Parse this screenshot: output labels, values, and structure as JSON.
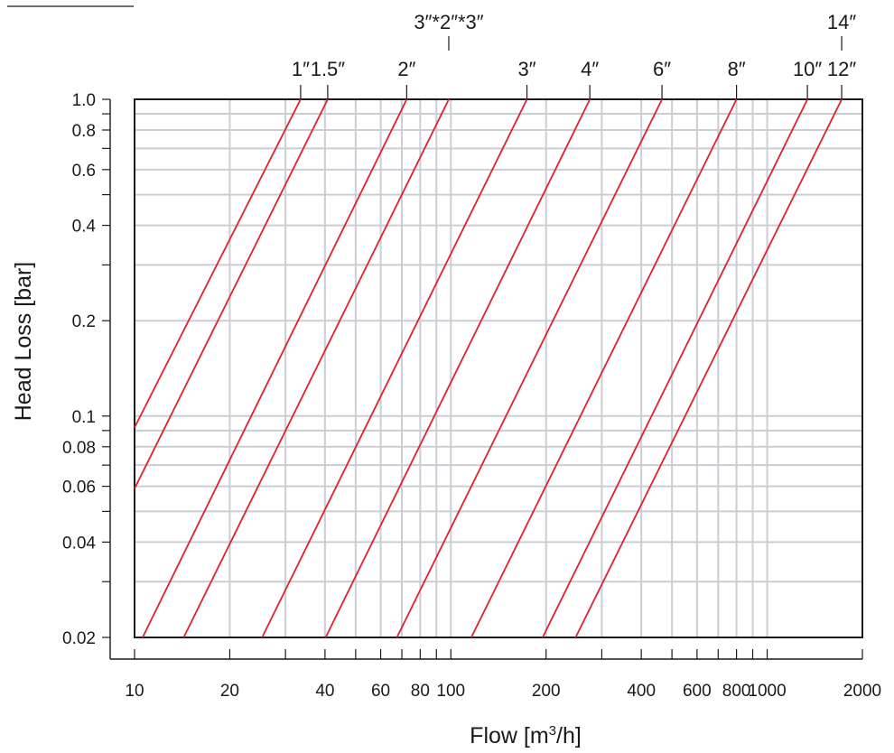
{
  "chart_data": {
    "type": "line",
    "xlabel_parts": {
      "pre": "Flow [m",
      "sup": "3",
      "post": "/h]"
    },
    "ylabel": "Head Loss [bar]",
    "x_scale": "log",
    "y_scale": "log",
    "xlim": [
      10,
      2000
    ],
    "ylim": [
      0.02,
      1.0
    ],
    "grid": true,
    "x_ticks": [
      {
        "value": 10,
        "label": "10"
      },
      {
        "value": 20,
        "label": "20"
      },
      {
        "value": 30,
        "label": ""
      },
      {
        "value": 40,
        "label": "40"
      },
      {
        "value": 50,
        "label": ""
      },
      {
        "value": 60,
        "label": "60"
      },
      {
        "value": 70,
        "label": ""
      },
      {
        "value": 80,
        "label": "80"
      },
      {
        "value": 90,
        "label": ""
      },
      {
        "value": 100,
        "label": "100"
      },
      {
        "value": 200,
        "label": "200"
      },
      {
        "value": 300,
        "label": ""
      },
      {
        "value": 400,
        "label": "400"
      },
      {
        "value": 500,
        "label": ""
      },
      {
        "value": 600,
        "label": "600"
      },
      {
        "value": 700,
        "label": ""
      },
      {
        "value": 800,
        "label": "800"
      },
      {
        "value": 900,
        "label": ""
      },
      {
        "value": 1000,
        "label": "1000"
      },
      {
        "value": 2000,
        "label": "2000"
      }
    ],
    "y_ticks": [
      {
        "value": 0.02,
        "label": "0.02"
      },
      {
        "value": 0.03,
        "label": ""
      },
      {
        "value": 0.04,
        "label": "0.04"
      },
      {
        "value": 0.05,
        "label": ""
      },
      {
        "value": 0.06,
        "label": "0.06"
      },
      {
        "value": 0.07,
        "label": ""
      },
      {
        "value": 0.08,
        "label": "0.08"
      },
      {
        "value": 0.09,
        "label": ""
      },
      {
        "value": 0.1,
        "label": "0.1"
      },
      {
        "value": 0.2,
        "label": "0.2"
      },
      {
        "value": 0.3,
        "label": ""
      },
      {
        "value": 0.4,
        "label": "0.4"
      },
      {
        "value": 0.5,
        "label": ""
      },
      {
        "value": 0.6,
        "label": "0.6"
      },
      {
        "value": 0.7,
        "label": ""
      },
      {
        "value": 0.8,
        "label": "0.8"
      },
      {
        "value": 0.9,
        "label": ""
      },
      {
        "value": 1.0,
        "label": "1.0"
      }
    ],
    "line_color": "#e0202e",
    "grid_color": "#c9ced3",
    "series": [
      {
        "name": "1″",
        "x": [
          10,
          33.5
        ],
        "y": [
          0.092,
          1.0
        ],
        "label_row": "lower"
      },
      {
        "name": "1.5″",
        "x": [
          10,
          40.8
        ],
        "y": [
          0.059,
          1.0
        ],
        "label_row": "lower"
      },
      {
        "name": "2″",
        "x": [
          10.6,
          72.5
        ],
        "y": [
          0.02,
          1.0
        ],
        "label_row": "lower"
      },
      {
        "name": "3″*2″*3″",
        "x": [
          14.3,
          98.5
        ],
        "y": [
          0.02,
          1.0
        ],
        "label_row": "upper"
      },
      {
        "name": "3″",
        "x": [
          25.3,
          174
        ],
        "y": [
          0.02,
          1.0
        ],
        "label_row": "lower"
      },
      {
        "name": "4″",
        "x": [
          40.2,
          275
        ],
        "y": [
          0.02,
          1.0
        ],
        "label_row": "lower"
      },
      {
        "name": "6″",
        "x": [
          67.5,
          465
        ],
        "y": [
          0.02,
          1.0
        ],
        "label_row": "lower"
      },
      {
        "name": "8″",
        "x": [
          116,
          800
        ],
        "y": [
          0.02,
          1.0
        ],
        "label_row": "lower"
      },
      {
        "name": "10″",
        "x": [
          195,
          1340
        ],
        "y": [
          0.02,
          1.0
        ],
        "label_row": "lower"
      },
      {
        "name": "12″",
        "x": [
          248,
          1720
        ],
        "y": [
          0.02,
          1.0
        ],
        "label_row": "lower"
      },
      {
        "name": "14″",
        "x": [
          248,
          1720
        ],
        "y": [
          0.02,
          1.0
        ],
        "label_row": "upper",
        "label_only": true
      }
    ]
  }
}
